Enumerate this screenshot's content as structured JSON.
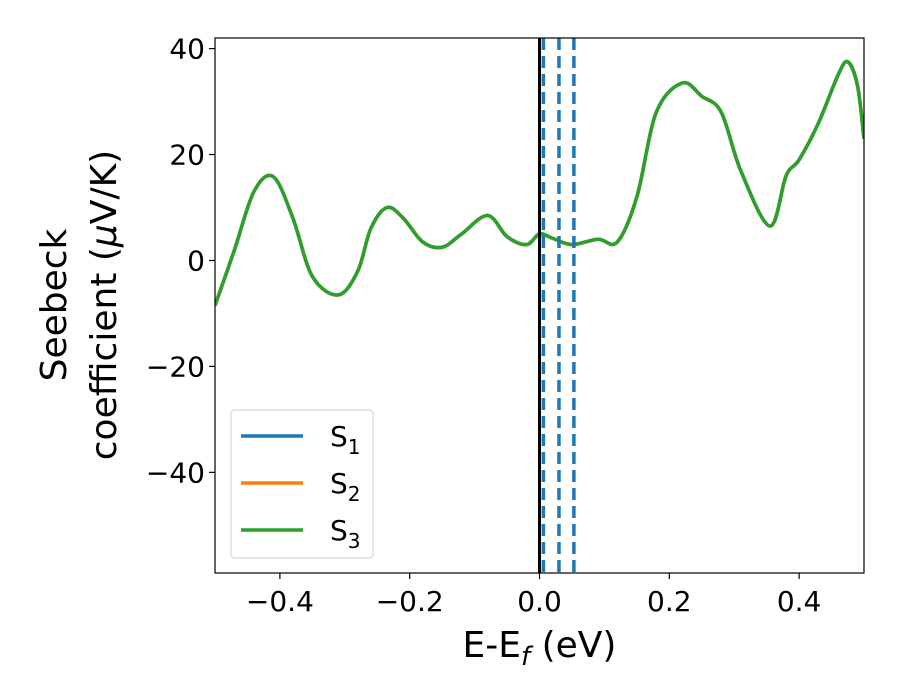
{
  "chart_data": {
    "type": "line",
    "xlabel": "E-E",
    "xlabel_sub": "f",
    "xlabel_unit": " (eV)",
    "ylabel_line1": "Seebeck",
    "ylabel_line2": "coefficient  (",
    "ylabel_mu": "μ",
    "ylabel_unit": "V/K)",
    "xlim": [
      -0.5,
      0.5
    ],
    "ylim": [
      -59,
      42
    ],
    "xticks": [
      -0.4,
      -0.2,
      0.0,
      0.2,
      0.4
    ],
    "xtick_labels": [
      "−0.4",
      "−0.2",
      "0.0",
      "0.2",
      "0.4"
    ],
    "yticks": [
      -40,
      -20,
      0,
      20,
      40
    ],
    "ytick_labels": [
      "−40",
      "−20",
      "0",
      "20",
      "40"
    ],
    "grid": false,
    "legend_position": "lower-left",
    "series": [
      {
        "name": "S",
        "sub": "1",
        "color": "#1f77b4",
        "x": [
          -0.5,
          -0.47,
          -0.44,
          -0.41,
          -0.38,
          -0.35,
          -0.31,
          -0.28,
          -0.26,
          -0.235,
          -0.21,
          -0.18,
          -0.15,
          -0.12,
          -0.08,
          -0.05,
          -0.02,
          0.0,
          0.02,
          0.05,
          0.09,
          0.12,
          0.15,
          0.18,
          0.22,
          0.25,
          0.28,
          0.31,
          0.355,
          0.38,
          0.4,
          0.43,
          0.46,
          0.475,
          0.49,
          0.5
        ],
        "y": [
          -8.5,
          2,
          13,
          15.8,
          8,
          -3,
          -6.5,
          -2,
          6,
          10,
          8,
          3.5,
          2.5,
          5,
          8.5,
          4.5,
          3,
          5,
          4.2,
          3,
          4,
          3.5,
          12,
          28,
          33.5,
          31,
          28,
          17,
          6.5,
          16,
          19,
          26,
          35,
          37.5,
          33,
          23
        ]
      },
      {
        "name": "S",
        "sub": "2",
        "color": "#ff7f0e",
        "x": [
          -0.5,
          -0.47,
          -0.44,
          -0.41,
          -0.38,
          -0.35,
          -0.31,
          -0.28,
          -0.26,
          -0.235,
          -0.21,
          -0.18,
          -0.15,
          -0.12,
          -0.08,
          -0.05,
          -0.02,
          0.0,
          0.02,
          0.05,
          0.09,
          0.12,
          0.15,
          0.18,
          0.22,
          0.25,
          0.28,
          0.31,
          0.355,
          0.38,
          0.4,
          0.43,
          0.46,
          0.475,
          0.49,
          0.5
        ],
        "y": [
          -8.5,
          2,
          13,
          15.8,
          8,
          -3,
          -6.5,
          -2,
          6,
          10,
          8,
          3.5,
          2.5,
          5,
          8.5,
          4.5,
          3,
          5,
          4.2,
          3,
          4,
          3.5,
          12,
          28,
          33.5,
          31,
          28,
          17,
          6.5,
          16,
          19,
          26,
          35,
          37.5,
          33,
          23
        ]
      },
      {
        "name": "S",
        "sub": "3",
        "color": "#2ca02c",
        "x": [
          -0.5,
          -0.47,
          -0.44,
          -0.41,
          -0.38,
          -0.35,
          -0.31,
          -0.28,
          -0.26,
          -0.235,
          -0.21,
          -0.18,
          -0.15,
          -0.12,
          -0.08,
          -0.05,
          -0.02,
          0.0,
          0.02,
          0.05,
          0.09,
          0.12,
          0.15,
          0.18,
          0.22,
          0.25,
          0.28,
          0.31,
          0.355,
          0.38,
          0.4,
          0.43,
          0.46,
          0.475,
          0.49,
          0.5
        ],
        "y": [
          -8.5,
          2,
          13,
          15.8,
          8,
          -3,
          -6.5,
          -2,
          6,
          10,
          8,
          3.5,
          2.5,
          5,
          8.5,
          4.5,
          3,
          5,
          4.2,
          3,
          4,
          3.5,
          12,
          28,
          33.5,
          31,
          28,
          17,
          6.5,
          16,
          19,
          26,
          35,
          37.5,
          33,
          23
        ]
      }
    ],
    "fermi_line": {
      "x": 0.0,
      "color": "#000000"
    },
    "dashed_lines": {
      "x": [
        0.006,
        0.03,
        0.053
      ],
      "color": "#1f77b4"
    }
  }
}
